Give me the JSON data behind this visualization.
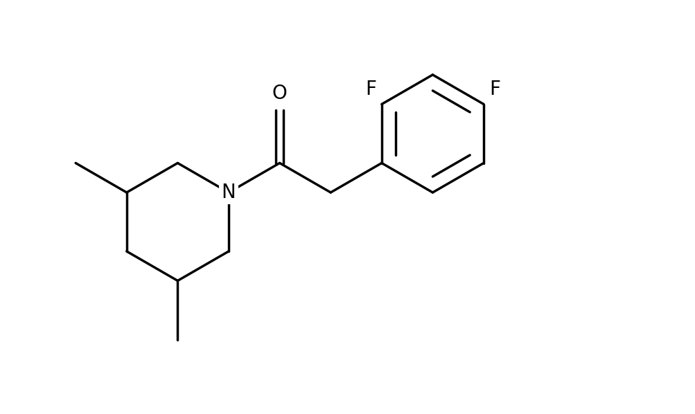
{
  "background_color": "#ffffff",
  "line_color": "#000000",
  "line_width": 2.5,
  "font_size": 20,
  "figsize": [
    10.04,
    5.98
  ],
  "dpi": 100,
  "xlim": [
    0.0,
    10.04
  ],
  "ylim": [
    0.0,
    5.98
  ]
}
